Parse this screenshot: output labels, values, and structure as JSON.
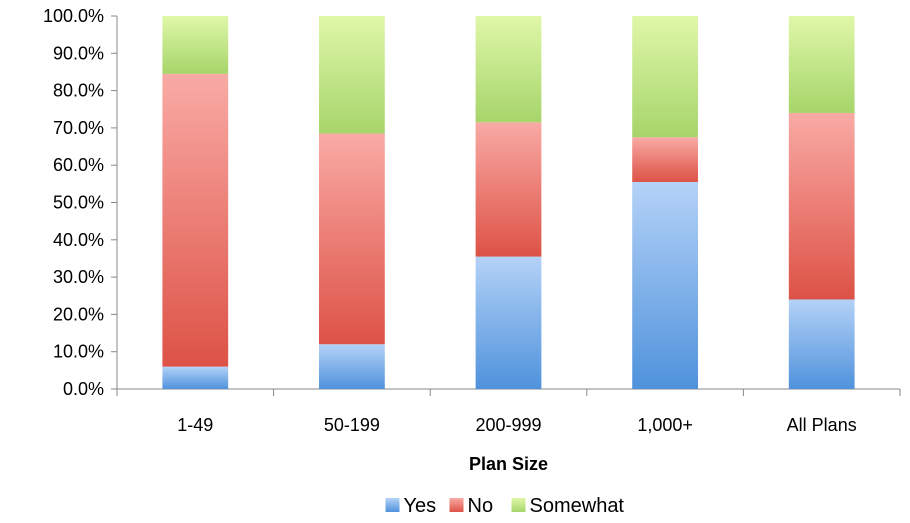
{
  "chart_data": {
    "type": "bar",
    "stacked": true,
    "categories": [
      "1-49",
      "50-199",
      "200-999",
      "1,000+",
      "All Plans"
    ],
    "series": [
      {
        "name": "Yes",
        "values": [
          6.0,
          12.0,
          35.5,
          55.5,
          24.0
        ],
        "color": "#5b9bd5"
      },
      {
        "name": "No",
        "values": [
          78.5,
          56.5,
          36.0,
          12.0,
          50.0
        ],
        "color": "#e15b4f"
      },
      {
        "name": "Somewhat",
        "values": [
          15.5,
          31.5,
          28.5,
          32.5,
          26.0
        ],
        "color": "#a8d46e"
      }
    ],
    "xlabel": "Plan Size",
    "ylabel": "",
    "ylim": [
      0,
      100
    ],
    "yticks": [
      "0.0%",
      "10.0%",
      "20.0%",
      "30.0%",
      "40.0%",
      "50.0%",
      "60.0%",
      "70.0%",
      "80.0%",
      "90.0%",
      "100.0%"
    ],
    "legend_position": "bottom",
    "grid": false
  }
}
